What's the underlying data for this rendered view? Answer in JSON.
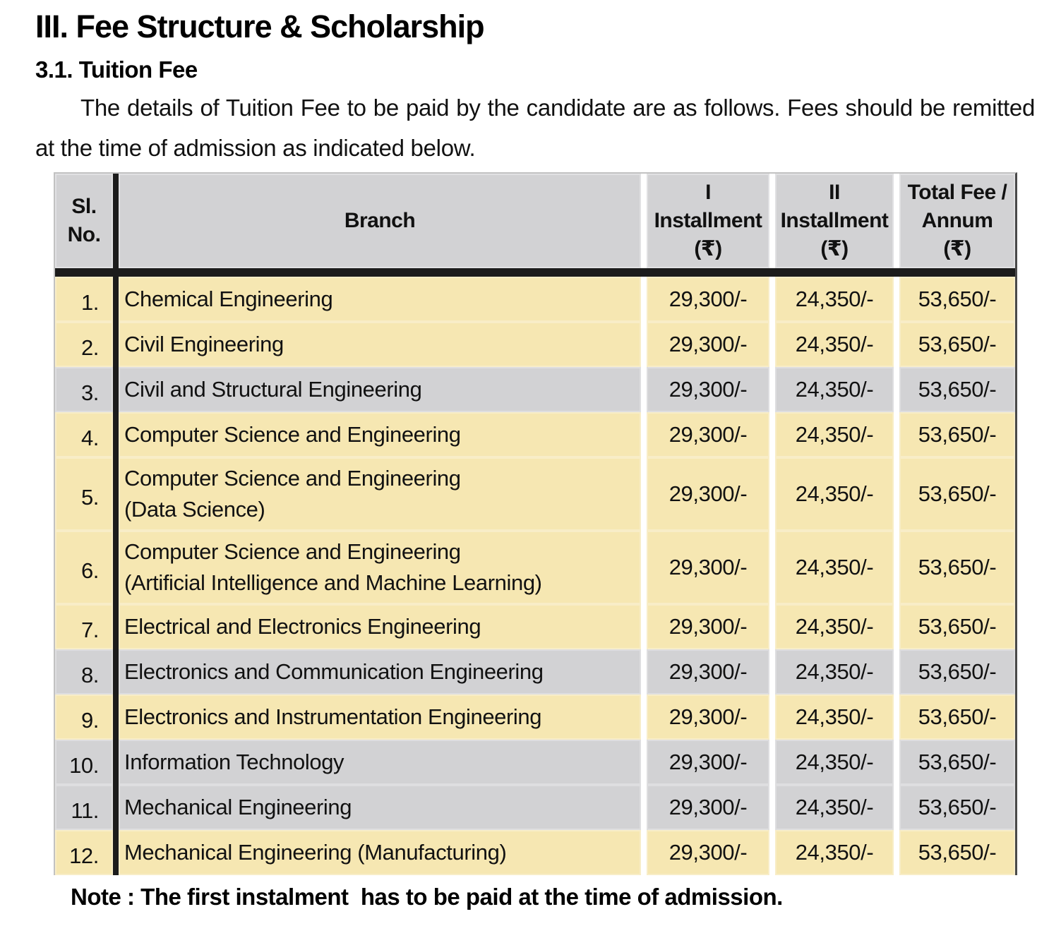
{
  "colors": {
    "row_yellow": "#F6E7B2",
    "row_gray": "#D2D2D4",
    "header_gray": "#D2D2D4",
    "rule_black": "#1C1C1C"
  },
  "document": {
    "title": "III. Fee Structure & Scholarship",
    "subtitle": "3.1. Tuition Fee",
    "intro": "The details of Tuition Fee to be paid by the candidate are as follows. Fees should be remitted at the time of admission as indicated below.",
    "note": "Note : The first instalment  has to be paid at the time of admission."
  },
  "table": {
    "columns": {
      "slno": {
        "line1": "Sl.",
        "line2": "No."
      },
      "branch": {
        "label": "Branch"
      },
      "installment1": {
        "line1": "I",
        "line2": "Installment",
        "line3": "(₹)"
      },
      "installment2": {
        "line1": "II",
        "line2": "Installment",
        "line3": "(₹)"
      },
      "total": {
        "line1": "Total Fee /",
        "line2": "Annum",
        "line3": "(₹)"
      }
    },
    "rows": [
      {
        "no": "1.",
        "branch": "Chemical Engineering",
        "inst1": "29,300/-",
        "inst2": "24,350/-",
        "total": "53,650/-",
        "shade": "yellow"
      },
      {
        "no": "2.",
        "branch": "Civil Engineering",
        "inst1": "29,300/-",
        "inst2": "24,350/-",
        "total": "53,650/-",
        "shade": "yellow"
      },
      {
        "no": "3.",
        "branch": "Civil and Structural Engineering",
        "inst1": "29,300/-",
        "inst2": "24,350/-",
        "total": "53,650/-",
        "shade": "gray"
      },
      {
        "no": "4.",
        "branch": "Computer Science and Engineering",
        "inst1": "29,300/-",
        "inst2": "24,350/-",
        "total": "53,650/-",
        "shade": "yellow"
      },
      {
        "no": "5.",
        "branch": "Computer Science and Engineering",
        "branch2": "(Data Science)",
        "inst1": "29,300/-",
        "inst2": "24,350/-",
        "total": "53,650/-",
        "shade": "yellow"
      },
      {
        "no": "6.",
        "branch": "Computer Science and Engineering",
        "branch2": "(Artificial Intelligence and Machine Learning)",
        "inst1": "29,300/-",
        "inst2": "24,350/-",
        "total": "53,650/-",
        "shade": "yellow"
      },
      {
        "no": "7.",
        "branch": "Electrical and Electronics Engineering",
        "inst1": "29,300/-",
        "inst2": "24,350/-",
        "total": "53,650/-",
        "shade": "yellow"
      },
      {
        "no": "8.",
        "branch": "Electronics and Communication Engineering",
        "inst1": "29,300/-",
        "inst2": "24,350/-",
        "total": "53,650/-",
        "shade": "gray"
      },
      {
        "no": "9.",
        "branch": "Electronics and Instrumentation Engineering",
        "inst1": "29,300/-",
        "inst2": "24,350/-",
        "total": "53,650/-",
        "shade": "yellow"
      },
      {
        "no": "10.",
        "branch": "Information Technology",
        "inst1": "29,300/-",
        "inst2": "24,350/-",
        "total": "53,650/-",
        "shade": "gray"
      },
      {
        "no": "11.",
        "branch": "Mechanical Engineering",
        "inst1": "29,300/-",
        "inst2": "24,350/-",
        "total": "53,650/-",
        "shade": "gray"
      },
      {
        "no": "12.",
        "branch": "Mechanical Engineering (Manufacturing)",
        "inst1": "29,300/-",
        "inst2": "24,350/-",
        "total": "53,650/-",
        "shade": "yellow"
      }
    ]
  }
}
